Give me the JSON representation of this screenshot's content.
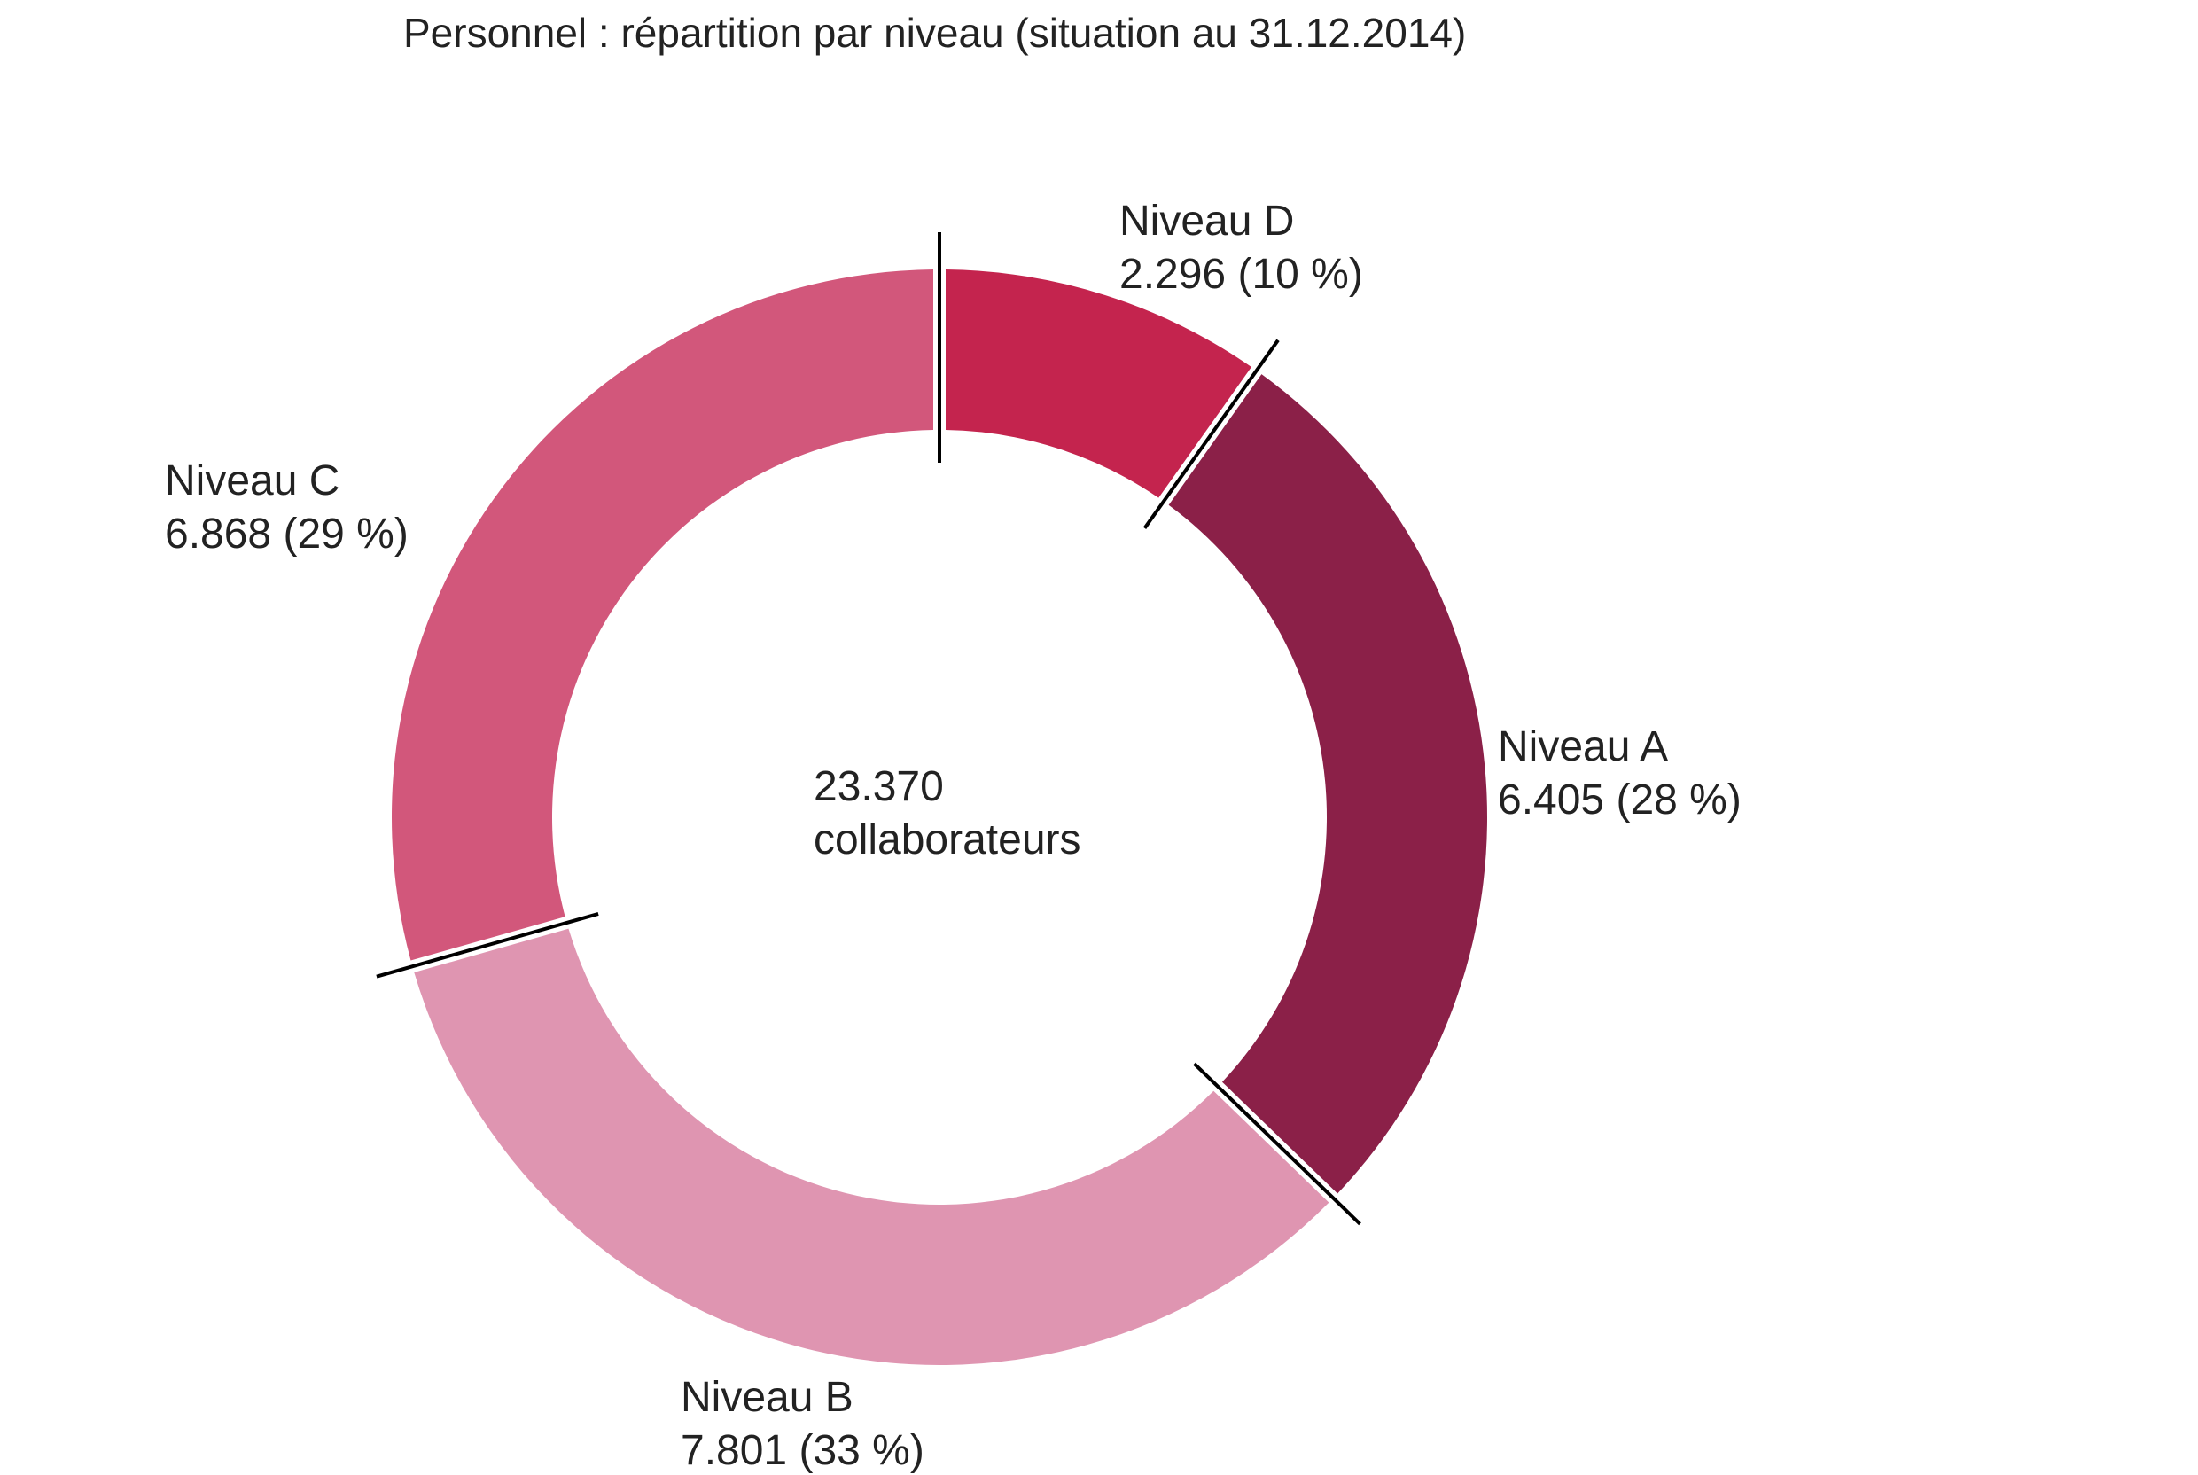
{
  "chart_data": {
    "type": "pie",
    "variant": "donut",
    "title": "Personnel : répartition par niveau (situation au 31.12.2014)",
    "center_label": {
      "line1": "23.370",
      "line2": "collaborateurs"
    },
    "total": 23370,
    "slices": [
      {
        "name": "Niveau D",
        "value": 2296,
        "value_text": "2.296 (10 %)",
        "percent": 10,
        "color": "#c4244e"
      },
      {
        "name": "Niveau A",
        "value": 6405,
        "value_text": "6.405 (28 %)",
        "percent": 28,
        "color": "#8b2048"
      },
      {
        "name": "Niveau B",
        "value": 7801,
        "value_text": "7.801 (33 %)",
        "percent": 33,
        "color": "#df95b1"
      },
      {
        "name": "Niveau C",
        "value": 6868,
        "value_text": "6.868 (29 %)",
        "percent": 29,
        "color": "#d2577b"
      }
    ],
    "start_angle": "12 o'clock",
    "direction": "clockwise",
    "separator_color": "#000000"
  }
}
